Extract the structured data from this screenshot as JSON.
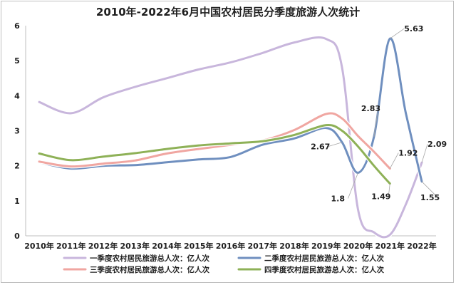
{
  "chart_data": {
    "type": "line",
    "title": "2010年-2022年6月中国农村居民分季度旅游人次统计",
    "categories": [
      "2010年",
      "2011年",
      "2012年",
      "2013年",
      "2014年",
      "2015年",
      "2016年",
      "2017年",
      "2018年",
      "2019年",
      "2020年",
      "2021年",
      "2022年"
    ],
    "ylim": [
      0,
      6
    ],
    "yticks": [
      "0",
      "1",
      "2",
      "3",
      "4",
      "5",
      "6"
    ],
    "grid": false,
    "legend_position": "bottom",
    "series": [
      {
        "name": "一季度农村居民旅游总人次：亿人次",
        "color": "#c8b6dc",
        "x": [
          0,
          1,
          2,
          3,
          4,
          5,
          6,
          7,
          8,
          9,
          9.5,
          10,
          10.5,
          11,
          11.5,
          12
        ],
        "values": [
          3.82,
          3.5,
          3.95,
          4.25,
          4.5,
          4.75,
          4.95,
          5.22,
          5.52,
          5.62,
          4.8,
          0.75,
          0.1,
          0.03,
          0.9,
          2.09
        ]
      },
      {
        "name": "二季度农村居民旅游总人次：亿人次",
        "color": "#6f8fbf",
        "x": [
          0,
          1,
          2,
          3,
          4,
          5,
          6,
          7,
          8,
          9,
          9.5,
          10,
          10.5,
          11,
          11.5,
          12
        ],
        "values": [
          2.1,
          1.92,
          2.0,
          2.02,
          2.1,
          2.18,
          2.25,
          2.6,
          2.78,
          3.08,
          2.67,
          1.8,
          2.83,
          5.63,
          3.5,
          1.55
        ]
      },
      {
        "name": "三季度农村居民旅游总人次：亿人次",
        "color": "#f0a6a1",
        "x": [
          0,
          1,
          2,
          3,
          4,
          5,
          6,
          7,
          8,
          9,
          9.5,
          10,
          10.5,
          11
        ],
        "values": [
          2.12,
          1.98,
          2.06,
          2.15,
          2.35,
          2.48,
          2.6,
          2.72,
          3.02,
          3.48,
          3.35,
          2.85,
          2.4,
          1.92
        ]
      },
      {
        "name": "四季度农村居民旅游总人次：亿人次",
        "color": "#8eb157",
        "x": [
          0,
          1,
          2,
          3,
          4,
          5,
          6,
          7,
          8,
          9,
          9.5,
          10,
          10.5,
          11
        ],
        "values": [
          2.35,
          2.16,
          2.26,
          2.36,
          2.48,
          2.58,
          2.64,
          2.7,
          2.88,
          3.16,
          3.0,
          2.55,
          2.0,
          1.49
        ]
      }
    ],
    "data_labels": [
      {
        "text": "5.63",
        "series": 1,
        "x": 11,
        "y": 5.63
      },
      {
        "text": "2.83",
        "series": 1,
        "x": 10.5,
        "y": 2.83
      },
      {
        "text": "2.67",
        "series": 1,
        "x": 9.5,
        "y": 2.67
      },
      {
        "text": "1.8",
        "series": 1,
        "x": 10,
        "y": 1.8
      },
      {
        "text": "1.92",
        "series": 2,
        "x": 11,
        "y": 1.92
      },
      {
        "text": "1.49",
        "series": 3,
        "x": 11,
        "y": 1.49
      },
      {
        "text": "2.09",
        "series": 0,
        "x": 12,
        "y": 2.09
      },
      {
        "text": "1.55",
        "series": 1,
        "x": 12,
        "y": 1.55
      }
    ]
  }
}
